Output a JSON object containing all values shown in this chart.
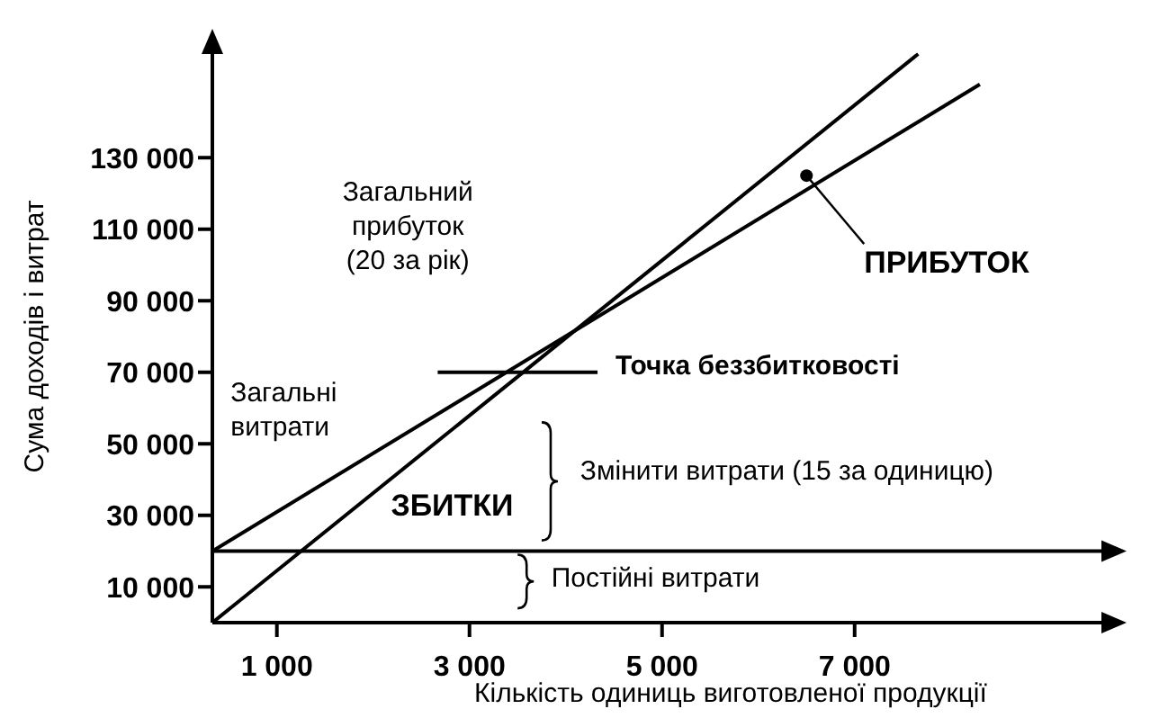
{
  "chart_data": {
    "type": "line",
    "xlabel": "Кількість одиниць виготовленої продукції",
    "ylabel": "Сума доходів і витрат",
    "xlim": [
      330,
      9600
    ],
    "ylim": [
      0,
      160000
    ],
    "xticks": [
      {
        "value": 1000,
        "label": "1 000"
      },
      {
        "value": 3000,
        "label": "3 000"
      },
      {
        "value": 5000,
        "label": "5 000"
      },
      {
        "value": 7000,
        "label": "7 000"
      }
    ],
    "yticks": [
      {
        "value": 10000,
        "label": "10 000"
      },
      {
        "value": 30000,
        "label": "30 000"
      },
      {
        "value": 50000,
        "label": "50 000"
      },
      {
        "value": 70000,
        "label": "70 000"
      },
      {
        "value": 90000,
        "label": "90 000"
      },
      {
        "value": 110000,
        "label": "110 000"
      },
      {
        "value": 130000,
        "label": "130 000"
      }
    ],
    "grid": false,
    "marker": "none",
    "line_style": "solid",
    "ref_lines": [
      {
        "axis": "y",
        "value": 20000
      }
    ],
    "series": [
      {
        "color": "#000000",
        "x": [
          330,
          7660
        ],
        "values": [
          0,
          159000
        ]
      },
      {
        "color": "#000000",
        "x": [
          330,
          8300
        ],
        "values": [
          20000,
          150500
        ]
      },
      {
        "color": "#000000",
        "x": [
          2670,
          4330
        ],
        "values": [
          70000,
          70000
        ]
      }
    ],
    "annotations": [
      "Загальний\nприбуток\n(20 за рік)",
      "Загальні\nвитрати",
      "ЗБИТКИ",
      "Змінити витрати (15 за одиницю)",
      "Постійні витрати",
      "Точка беззбитковості",
      {
        "text": "ПРИБУТОК",
        "x": 6500,
        "y": 125000
      }
    ]
  }
}
